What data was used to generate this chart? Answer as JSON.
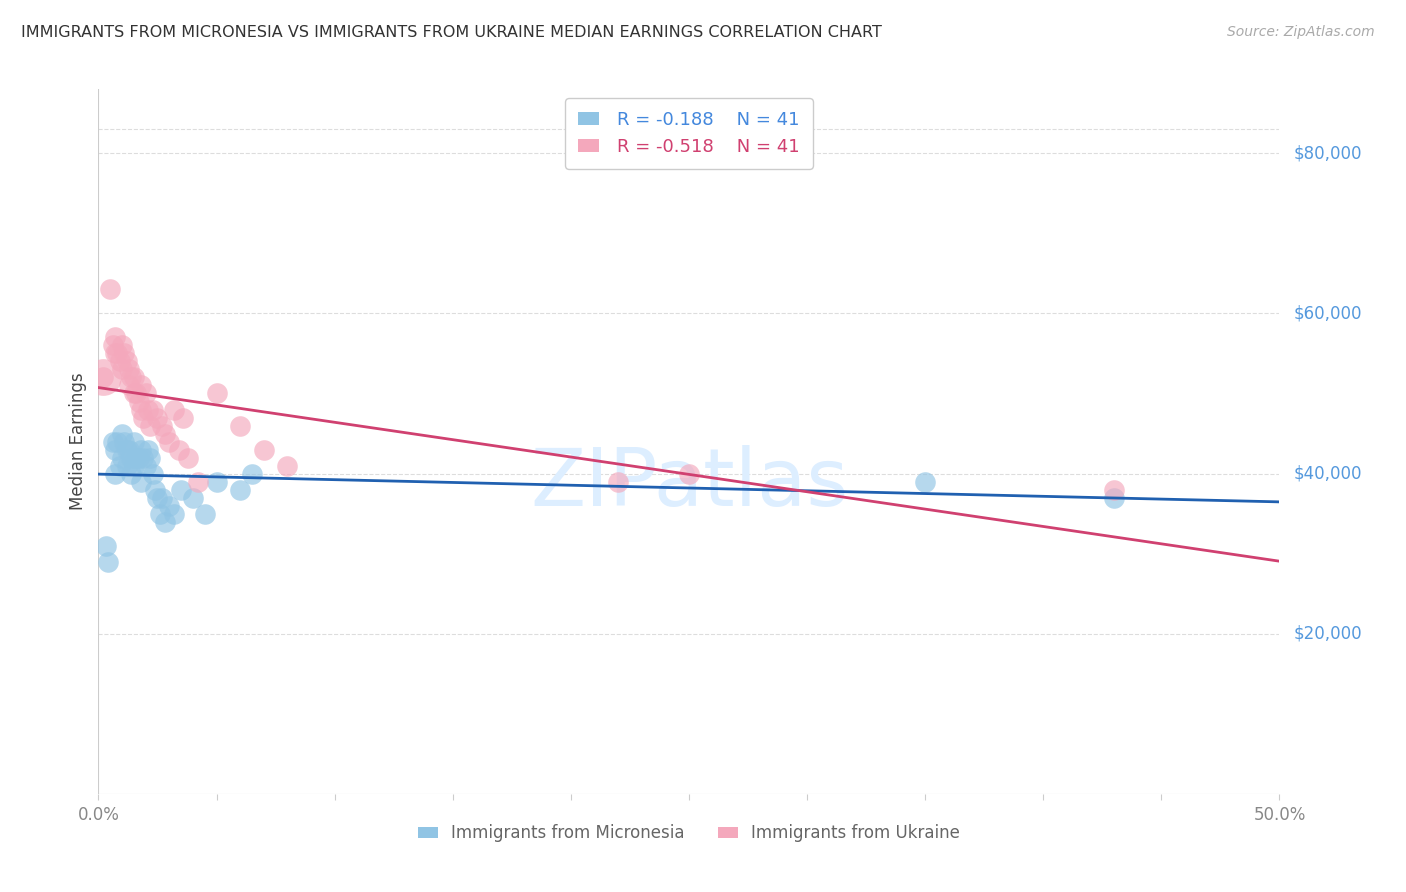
{
  "title": "IMMIGRANTS FROM MICRONESIA VS IMMIGRANTS FROM UKRAINE MEDIAN EARNINGS CORRELATION CHART",
  "source": "Source: ZipAtlas.com",
  "ylabel": "Median Earnings",
  "y_tick_labels": [
    "$20,000",
    "$40,000",
    "$60,000",
    "$80,000"
  ],
  "y_tick_values": [
    20000,
    40000,
    60000,
    80000
  ],
  "ylim": [
    0,
    88000
  ],
  "xlim": [
    0.0,
    0.5
  ],
  "x_ticks": [
    0.0,
    0.05,
    0.1,
    0.15,
    0.2,
    0.25,
    0.3,
    0.35,
    0.4,
    0.45,
    0.5
  ],
  "blue_R": "-0.188",
  "blue_N": "41",
  "pink_R": "-0.518",
  "pink_N": "41",
  "blue_scatter_color": "#90c4e4",
  "pink_scatter_color": "#f4a8bc",
  "blue_line_color": "#2060b0",
  "pink_line_color": "#d04070",
  "right_axis_color": "#5599dd",
  "background_color": "#ffffff",
  "grid_color": "#dddddd",
  "blue_scatter_x": [
    0.003,
    0.004,
    0.006,
    0.007,
    0.007,
    0.008,
    0.009,
    0.01,
    0.01,
    0.011,
    0.012,
    0.012,
    0.013,
    0.014,
    0.014,
    0.015,
    0.015,
    0.016,
    0.017,
    0.018,
    0.018,
    0.019,
    0.02,
    0.021,
    0.022,
    0.023,
    0.024,
    0.025,
    0.026,
    0.027,
    0.028,
    0.03,
    0.032,
    0.035,
    0.04,
    0.045,
    0.05,
    0.06,
    0.065,
    0.35,
    0.43
  ],
  "blue_scatter_y": [
    31000,
    29000,
    44000,
    43000,
    40000,
    44000,
    41000,
    45000,
    42000,
    44000,
    43000,
    41000,
    43000,
    42000,
    40000,
    44000,
    41000,
    42000,
    42000,
    43000,
    39000,
    42000,
    41000,
    43000,
    42000,
    40000,
    38000,
    37000,
    35000,
    37000,
    34000,
    36000,
    35000,
    38000,
    37000,
    35000,
    39000,
    38000,
    40000,
    39000,
    37000
  ],
  "pink_scatter_x": [
    0.002,
    0.005,
    0.006,
    0.007,
    0.007,
    0.008,
    0.009,
    0.01,
    0.01,
    0.011,
    0.012,
    0.013,
    0.013,
    0.014,
    0.015,
    0.015,
    0.016,
    0.017,
    0.018,
    0.018,
    0.019,
    0.02,
    0.021,
    0.022,
    0.023,
    0.025,
    0.027,
    0.028,
    0.03,
    0.032,
    0.034,
    0.036,
    0.038,
    0.042,
    0.05,
    0.06,
    0.07,
    0.08,
    0.22,
    0.25,
    0.43
  ],
  "pink_scatter_y": [
    52000,
    63000,
    56000,
    57000,
    55000,
    55000,
    54000,
    56000,
    53000,
    55000,
    54000,
    53000,
    51000,
    52000,
    50000,
    52000,
    50000,
    49000,
    51000,
    48000,
    47000,
    50000,
    48000,
    46000,
    48000,
    47000,
    46000,
    45000,
    44000,
    48000,
    43000,
    47000,
    42000,
    39000,
    50000,
    46000,
    43000,
    41000,
    39000,
    40000,
    38000
  ],
  "watermark_color": "#ddeeff"
}
